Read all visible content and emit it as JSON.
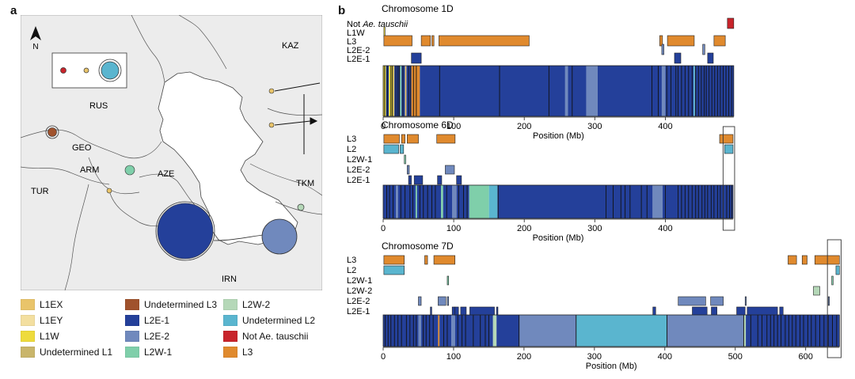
{
  "panels": {
    "a": "a",
    "b": "b"
  },
  "colors": {
    "L1EX": "#e9c46a",
    "L1EY": "#f3dfa0",
    "L1W": "#eedb3c",
    "UndL1": "#c9b56a",
    "UndL3": "#a0522d",
    "L2E1": "#24409a",
    "L2E2": "#7089bd",
    "L2W1": "#7fcfaa",
    "L2W2": "#b5d8b8",
    "UndL2": "#5ab5cf",
    "NotAe": "#c8242b",
    "L3": "#e08a2e"
  },
  "map": {
    "north": "N",
    "countries": [
      {
        "id": "kaz",
        "label": "KAZ"
      },
      {
        "id": "rus",
        "label": "RUS"
      },
      {
        "id": "geo",
        "label": "GEO"
      },
      {
        "id": "arm",
        "label": "ARM"
      },
      {
        "id": "aze",
        "label": "AZE"
      },
      {
        "id": "tur",
        "label": "TUR"
      },
      {
        "id": "tkm",
        "label": "TKM"
      },
      {
        "id": "irn",
        "label": "IRN"
      }
    ]
  },
  "legend": [
    {
      "key": "L1EX",
      "label": "L1EX"
    },
    {
      "key": "L1EY",
      "label": "L1EY"
    },
    {
      "key": "L1W",
      "label": "L1W"
    },
    {
      "key": "UndL1",
      "label": "Undetermined L1"
    },
    {
      "key": "UndL3",
      "label": "Undetermined L3"
    },
    {
      "key": "L2E1",
      "label": "L2E-1"
    },
    {
      "key": "L2E2",
      "label": "L2E-2"
    },
    {
      "key": "L2W1",
      "label": "L2W-1"
    },
    {
      "key": "L2W2",
      "label": "L2W-2"
    },
    {
      "key": "UndL2",
      "label": "Undetermined L2"
    },
    {
      "key": "NotAe",
      "label": "Not Ae. tauschii"
    },
    {
      "key": "L3",
      "label": "L3"
    }
  ],
  "chromosomes": [
    {
      "name": "Chromosome 1D",
      "xlabel": "Position (Mb)",
      "length": 497,
      "ticks": [
        0,
        100,
        200,
        300,
        400
      ],
      "rows": [
        {
          "label": "Not Ae. tauschii",
          "key": "NotAe",
          "segs": [
            [
              488,
              497
            ]
          ]
        },
        {
          "label": "L1W",
          "key": "L1W",
          "segs": [
            [
              1,
              2
            ]
          ]
        },
        {
          "label": "L3",
          "key": "L3",
          "segs": [
            [
              1,
              41
            ],
            [
              54,
              67
            ],
            [
              69,
              72
            ],
            [
              79,
              207
            ],
            [
              392,
              396
            ],
            [
              403,
              441
            ],
            [
              469,
              485
            ]
          ]
        },
        {
          "label": "L2E-2",
          "key": "L2E2",
          "segs": [
            [
              395,
              398
            ],
            [
              453,
              456
            ]
          ]
        },
        {
          "label": "L2E-1",
          "key": "L2E1",
          "segs": [
            [
              40,
              54
            ],
            [
              413,
              422
            ],
            [
              460,
              468
            ]
          ]
        }
      ],
      "track": [
        {
          "key": "L1W",
          "s": 0,
          "e": 4
        },
        {
          "key": "L2E1",
          "s": 4,
          "e": 8
        },
        {
          "key": "L1W",
          "s": 8,
          "e": 14
        },
        {
          "key": "UndL1",
          "s": 14,
          "e": 16
        },
        {
          "key": "L2E1",
          "s": 16,
          "e": 24
        },
        {
          "key": "L2W1",
          "s": 24,
          "e": 26
        },
        {
          "key": "L2E1",
          "s": 26,
          "e": 31
        },
        {
          "key": "L1EX",
          "s": 31,
          "e": 33
        },
        {
          "key": "L2E1",
          "s": 33,
          "e": 40
        },
        {
          "key": "L3",
          "s": 40,
          "e": 52
        },
        {
          "key": "L2E1",
          "s": 52,
          "e": 258
        },
        {
          "key": "L2E2",
          "s": 258,
          "e": 262
        },
        {
          "key": "L2E1",
          "s": 262,
          "e": 288
        },
        {
          "key": "L2E2",
          "s": 288,
          "e": 304
        },
        {
          "key": "L2E1",
          "s": 304,
          "e": 395
        },
        {
          "key": "L2E2",
          "s": 395,
          "e": 400
        },
        {
          "key": "L2E1",
          "s": 400,
          "e": 440
        },
        {
          "key": "UndL2",
          "s": 440,
          "e": 442
        },
        {
          "key": "L2E1",
          "s": 442,
          "e": 497
        }
      ],
      "lines": [
        2,
        6,
        11,
        13,
        18,
        21,
        23,
        28,
        36,
        39,
        43,
        47,
        80,
        165,
        235,
        268,
        381,
        390,
        402,
        408,
        415,
        418,
        423,
        428,
        433,
        438,
        443,
        447,
        451,
        455,
        458,
        462,
        466,
        470,
        474,
        478,
        482,
        486,
        490,
        494
      ]
    },
    {
      "name": "Chromosome 6D",
      "xlabel": "Position (Mb)",
      "length": 496,
      "ticks": [
        0,
        100,
        200,
        300,
        400
      ],
      "rows": [
        {
          "label": "L3",
          "key": "L3",
          "segs": [
            [
              1,
              23
            ],
            [
              26,
              31
            ],
            [
              34,
              50
            ],
            [
              76,
              102
            ],
            [
              477,
              496
            ]
          ]
        },
        {
          "label": "L2",
          "key": "UndL2",
          "segs": [
            [
              1,
              22
            ],
            [
              24,
              29
            ],
            [
              484,
              496
            ]
          ]
        },
        {
          "label": "L2W-1",
          "key": "L2W1",
          "segs": [
            [
              30,
              32
            ]
          ]
        },
        {
          "label": "L2E-2",
          "key": "L2E2",
          "segs": [
            [
              34,
              37
            ],
            [
              88,
              101
            ]
          ]
        },
        {
          "label": "L2E-1",
          "key": "L2E1",
          "segs": [
            [
              36,
              40
            ],
            [
              44,
              56
            ],
            [
              77,
              83
            ],
            [
              104,
              111
            ]
          ]
        }
      ],
      "track": [
        {
          "key": "L2E1",
          "s": 0,
          "e": 18
        },
        {
          "key": "L2E2",
          "s": 18,
          "e": 21
        },
        {
          "key": "L2E1",
          "s": 21,
          "e": 46
        },
        {
          "key": "L2W1",
          "s": 46,
          "e": 48
        },
        {
          "key": "L2E1",
          "s": 48,
          "e": 82
        },
        {
          "key": "L2W1",
          "s": 82,
          "e": 85
        },
        {
          "key": "L2E1",
          "s": 85,
          "e": 98
        },
        {
          "key": "L2E2",
          "s": 98,
          "e": 104
        },
        {
          "key": "L2E1",
          "s": 104,
          "e": 122
        },
        {
          "key": "L2W1",
          "s": 122,
          "e": 150
        },
        {
          "key": "UndL2",
          "s": 150,
          "e": 162
        },
        {
          "key": "L2E1",
          "s": 162,
          "e": 382
        },
        {
          "key": "L2E2",
          "s": 382,
          "e": 396
        },
        {
          "key": "L2E1",
          "s": 396,
          "e": 496
        }
      ],
      "lines": [
        5,
        9,
        14,
        25,
        31,
        38,
        42,
        52,
        57,
        63,
        69,
        74,
        90,
        107,
        114,
        119,
        163,
        316,
        326,
        337,
        343,
        350,
        366,
        374,
        400,
        418,
        423,
        428,
        433,
        438,
        443,
        447,
        452,
        456,
        460,
        465,
        469,
        474,
        478,
        482,
        487,
        491,
        494
      ]
    },
    {
      "name": "Chromosome 7D",
      "xlabel": "Position (Mb)",
      "length": 648,
      "ticks": [
        0,
        100,
        200,
        300,
        400,
        500,
        600
      ],
      "rows": [
        {
          "label": "L3",
          "key": "L3",
          "segs": [
            [
              1,
              30
            ],
            [
              59,
              63
            ],
            [
              72,
              102
            ],
            [
              575,
              587
            ],
            [
              595,
              602
            ],
            [
              613,
              648
            ]
          ]
        },
        {
          "label": "L2",
          "key": "UndL2",
          "segs": [
            [
              1,
              30
            ],
            [
              643,
              648
            ]
          ]
        },
        {
          "label": "L2W-1",
          "key": "L2W1",
          "segs": [
            [
              91,
              93
            ],
            [
              637,
              639
            ]
          ]
        },
        {
          "label": "L2W-2",
          "key": "L2W2",
          "segs": [
            [
              611,
              620
            ]
          ]
        },
        {
          "label": "L2E-2",
          "key": "L2E2",
          "segs": [
            [
              50,
              54
            ],
            [
              78,
              89
            ],
            [
              91,
              93
            ],
            [
              419,
              458
            ],
            [
              465,
              483
            ],
            [
              514,
              515
            ],
            [
              632,
              633
            ]
          ]
        },
        {
          "label": "L2E-1",
          "key": "L2E1",
          "segs": [
            [
              67,
              69
            ],
            [
              98,
              102
            ],
            [
              102,
              107
            ],
            [
              110,
              118
            ],
            [
              123,
              158
            ],
            [
              161,
              163
            ],
            [
              383,
              387
            ],
            [
              439,
              460
            ],
            [
              466,
              474
            ],
            [
              502,
              514
            ],
            [
              517,
              560
            ],
            [
              563,
              568
            ]
          ]
        }
      ],
      "track": [
        {
          "key": "L2E1",
          "s": 0,
          "e": 50
        },
        {
          "key": "L2E2",
          "s": 50,
          "e": 54
        },
        {
          "key": "L2E1",
          "s": 54,
          "e": 78
        },
        {
          "key": "L3",
          "s": 78,
          "e": 80
        },
        {
          "key": "L2E1",
          "s": 80,
          "e": 97
        },
        {
          "key": "L2E2",
          "s": 97,
          "e": 102
        },
        {
          "key": "L2E1",
          "s": 102,
          "e": 156
        },
        {
          "key": "L2W2",
          "s": 156,
          "e": 161
        },
        {
          "key": "L2E1",
          "s": 161,
          "e": 193
        },
        {
          "key": "L2E2",
          "s": 193,
          "e": 274
        },
        {
          "key": "UndL2",
          "s": 274,
          "e": 403
        },
        {
          "key": "L2E2",
          "s": 403,
          "e": 512
        },
        {
          "key": "L2W2",
          "s": 512,
          "e": 515
        },
        {
          "key": "L2E1",
          "s": 515,
          "e": 648
        }
      ],
      "lines": [
        3,
        7,
        11,
        16,
        21,
        26,
        33,
        38,
        43,
        47,
        57,
        61,
        66,
        71,
        86,
        91,
        106,
        112,
        117,
        128,
        138,
        145,
        150,
        193,
        274,
        403,
        512,
        522,
        532,
        538,
        545,
        550,
        555,
        560,
        565,
        571,
        576,
        581,
        586,
        592,
        597,
        603,
        608,
        614,
        620,
        626,
        632,
        638,
        644
      ]
    }
  ]
}
